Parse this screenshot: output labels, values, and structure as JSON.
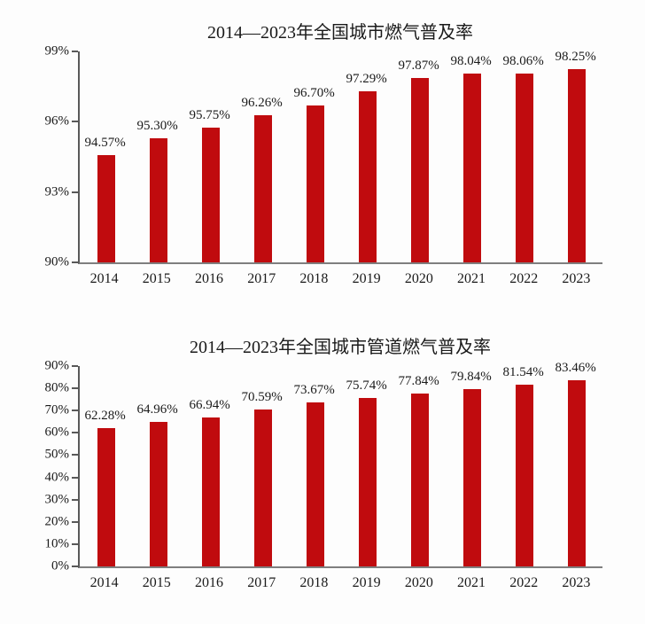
{
  "page": {
    "background_color": "#fdfdfd",
    "text_color": "#1a1a1a"
  },
  "accent": {
    "bar_color": "#c00b0e",
    "axis_color": "#595959"
  },
  "chart_data": [
    {
      "type": "bar",
      "title": "2014—2023年全国城市燃气普及率",
      "xlabel": "",
      "ylabel": "",
      "grid": false,
      "legend": "none",
      "ylim": [
        90,
        99
      ],
      "y_ticks": [
        {
          "value": 90,
          "label": "90%"
        },
        {
          "value": 93,
          "label": "93%"
        },
        {
          "value": 96,
          "label": "96%"
        },
        {
          "value": 99,
          "label": "99%"
        }
      ],
      "categories": [
        "2014",
        "2015",
        "2016",
        "2017",
        "2018",
        "2019",
        "2020",
        "2021",
        "2022",
        "2023"
      ],
      "values": [
        94.57,
        95.3,
        95.75,
        96.26,
        96.7,
        97.29,
        97.87,
        98.04,
        98.06,
        98.25
      ],
      "bar_labels": [
        "94.57%",
        "95.30%",
        "95.75%",
        "96.26%",
        "96.70%",
        "97.29%",
        "97.87%",
        "98.04%",
        "98.06%",
        "98.25%"
      ]
    },
    {
      "type": "bar",
      "title": "2014—2023年全国城市管道燃气普及率",
      "xlabel": "",
      "ylabel": "",
      "grid": false,
      "legend": "none",
      "ylim": [
        0,
        90
      ],
      "y_ticks": [
        {
          "value": 0,
          "label": "0%"
        },
        {
          "value": 10,
          "label": "10%"
        },
        {
          "value": 20,
          "label": "20%"
        },
        {
          "value": 30,
          "label": "30%"
        },
        {
          "value": 40,
          "label": "40%"
        },
        {
          "value": 50,
          "label": "50%"
        },
        {
          "value": 60,
          "label": "60%"
        },
        {
          "value": 70,
          "label": "70%"
        },
        {
          "value": 80,
          "label": "80%"
        },
        {
          "value": 90,
          "label": "90%"
        }
      ],
      "categories": [
        "2014",
        "2015",
        "2016",
        "2017",
        "2018",
        "2019",
        "2020",
        "2021",
        "2022",
        "2023"
      ],
      "values": [
        62.28,
        64.96,
        66.94,
        70.59,
        73.67,
        75.74,
        77.84,
        79.84,
        81.54,
        83.46
      ],
      "bar_labels": [
        "62.28%",
        "64.96%",
        "66.94%",
        "70.59%",
        "73.67%",
        "75.74%",
        "77.84%",
        "79.84%",
        "81.54%",
        "83.46%"
      ]
    }
  ]
}
